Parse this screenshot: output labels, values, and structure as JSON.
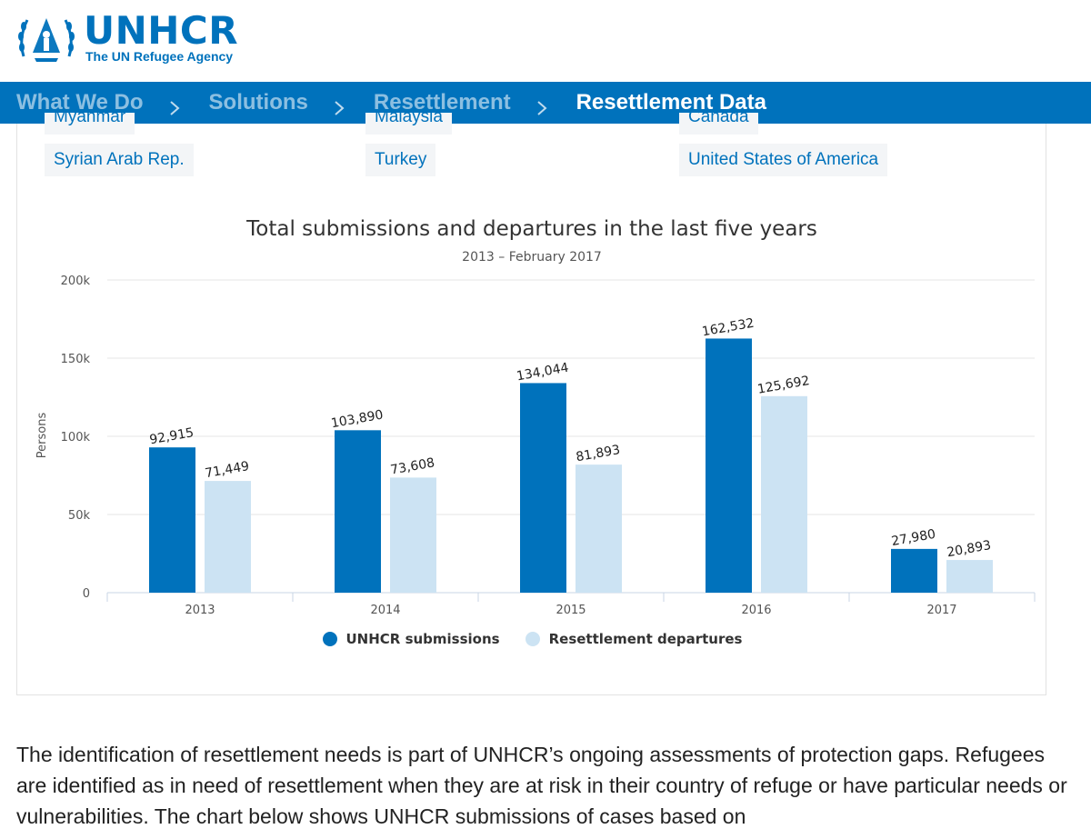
{
  "header": {
    "brand_name": "UNHCR",
    "brand_tagline": "The UN Refugee Agency",
    "accent_color": "#0072bc"
  },
  "breadcrumb": {
    "items": [
      "What We Do",
      "Solutions",
      "Resettlement",
      "Resettlement Data"
    ],
    "separator_icon": "chevron-right-icon"
  },
  "countries": {
    "row_cut": [
      "Myanmar",
      "Malaysia",
      "Canada"
    ],
    "row_full": [
      "Syrian Arab Rep.",
      "Turkey",
      "United States of America"
    ]
  },
  "chart_data": {
    "type": "bar",
    "title": "Total submissions and departures in the last five years",
    "subtitle": "2013 – February 2017",
    "ylabel": "Persons",
    "xlabel": "",
    "categories": [
      "2013",
      "2014",
      "2015",
      "2016",
      "2017"
    ],
    "yticks": [
      "0",
      "50k",
      "100k",
      "150k",
      "200k"
    ],
    "ylim": [
      0,
      200000
    ],
    "grid": true,
    "legend_position": "bottom-center",
    "series": [
      {
        "name": "UNHCR submissions",
        "color": "#0072bc",
        "values": [
          92915,
          103890,
          134044,
          162532,
          27980
        ],
        "labels": [
          "92,915",
          "103,890",
          "134,044",
          "162,532",
          "27,980"
        ]
      },
      {
        "name": "Resettlement departures",
        "color": "#cce3f3",
        "values": [
          71449,
          73608,
          81893,
          125692,
          20893
        ],
        "labels": [
          "71,449",
          "73,608",
          "81,893",
          "125,692",
          "20,893"
        ]
      }
    ]
  },
  "body": {
    "paragraph": "The identification of resettlement needs is part of UNHCR’s ongoing assessments of protection gaps. Refugees are identified as in need of resettlement when they are at risk in their country of refuge or have particular needs or vulnerabilities. The chart below shows UNHCR submissions of cases based on"
  }
}
